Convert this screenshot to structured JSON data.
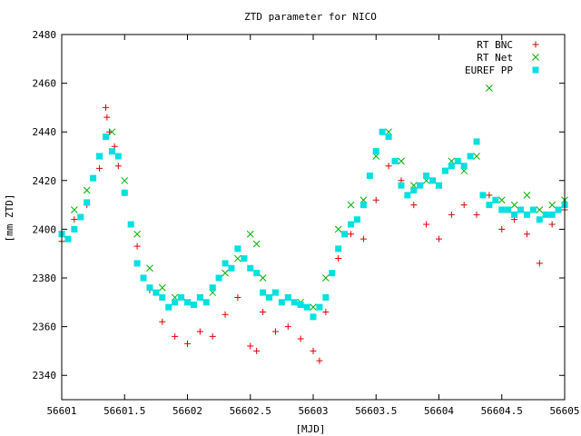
{
  "chart_data": {
    "type": "scatter",
    "title": "ZTD parameter for NICO",
    "xlabel": "[MJD]",
    "ylabel": "[mm ZTD]",
    "xlim": [
      56601,
      56605
    ],
    "ylim": [
      2330,
      2480
    ],
    "x_ticks": [
      56601,
      56601.5,
      56602,
      56602.5,
      56603,
      56603.5,
      56604,
      56604.5,
      56605
    ],
    "x_tick_labels": [
      "56601",
      "56601.5",
      "56602",
      "56602.5",
      "56603",
      "56603.5",
      "56604",
      "56604.5",
      "56605"
    ],
    "y_ticks": [
      2340,
      2360,
      2380,
      2400,
      2420,
      2440,
      2460,
      2480
    ],
    "y_tick_labels": [
      "2340",
      "2360",
      "2380",
      "2400",
      "2420",
      "2440",
      "2460",
      "2480"
    ],
    "grid": false,
    "legend_position": "top-right",
    "series": [
      {
        "name": "RT BNC",
        "marker": "plus",
        "color": "#e00000",
        "x": [
          56601.0,
          56601.1,
          56601.2,
          56601.3,
          56601.35,
          56601.36,
          56601.38,
          56601.42,
          56601.45,
          56601.5,
          56601.6,
          56601.7,
          56601.8,
          56601.9,
          56602.0,
          56602.1,
          56602.2,
          56602.3,
          56602.4,
          56602.5,
          56602.55,
          56602.6,
          56602.7,
          56602.8,
          56602.9,
          56603.0,
          56603.05,
          56603.1,
          56603.2,
          56603.3,
          56603.4,
          56603.5,
          56603.6,
          56603.7,
          56603.8,
          56603.9,
          56604.0,
          56604.1,
          56604.2,
          56604.3,
          56604.4,
          56604.5,
          56604.6,
          56604.7,
          56604.8,
          56604.9,
          56605.0
        ],
        "y": [
          2395,
          2404,
          2410,
          2425,
          2450,
          2446,
          2440,
          2434,
          2426,
          2415,
          2393,
          2375,
          2362,
          2356,
          2353,
          2358,
          2356,
          2365,
          2372,
          2352,
          2350,
          2366,
          2358,
          2360,
          2355,
          2350,
          2346,
          2366,
          2388,
          2398,
          2396,
          2412,
          2426,
          2420,
          2410,
          2402,
          2396,
          2406,
          2410,
          2406,
          2414,
          2400,
          2404,
          2398,
          2386,
          2402,
          2408
        ]
      },
      {
        "name": "RT Net",
        "marker": "cross",
        "color": "#00b000",
        "x": [
          56601.0,
          56601.1,
          56601.2,
          56601.3,
          56601.4,
          56601.5,
          56601.6,
          56601.7,
          56601.8,
          56601.9,
          56602.0,
          56602.1,
          56602.2,
          56602.3,
          56602.4,
          56602.5,
          56602.55,
          56602.6,
          56602.7,
          56602.8,
          56602.9,
          56603.0,
          56603.1,
          56603.2,
          56603.3,
          56603.4,
          56603.5,
          56603.6,
          56603.7,
          56603.8,
          56603.9,
          56604.0,
          56604.1,
          56604.2,
          56604.3,
          56604.4,
          56604.5,
          56604.6,
          56604.7,
          56604.8,
          56604.9,
          56605.0
        ],
        "y": [
          2398,
          2408,
          2416,
          2430,
          2440,
          2420,
          2398,
          2384,
          2376,
          2372,
          2370,
          2372,
          2374,
          2382,
          2388,
          2398,
          2394,
          2380,
          2374,
          2372,
          2370,
          2368,
          2380,
          2400,
          2410,
          2412,
          2430,
          2440,
          2428,
          2418,
          2420,
          2418,
          2428,
          2424,
          2430,
          2458,
          2412,
          2410,
          2414,
          2408,
          2410,
          2412
        ]
      },
      {
        "name": "EUREF PP",
        "marker": "square",
        "color": "#00e0e0",
        "x": [
          56601.0,
          56601.05,
          56601.1,
          56601.15,
          56601.2,
          56601.25,
          56601.3,
          56601.35,
          56601.4,
          56601.45,
          56601.5,
          56601.55,
          56601.6,
          56601.65,
          56601.7,
          56601.75,
          56601.8,
          56601.85,
          56601.9,
          56601.95,
          56602.0,
          56602.05,
          56602.1,
          56602.15,
          56602.2,
          56602.25,
          56602.3,
          56602.35,
          56602.4,
          56602.45,
          56602.5,
          56602.55,
          56602.6,
          56602.65,
          56602.7,
          56602.75,
          56602.8,
          56602.85,
          56602.9,
          56602.95,
          56603.0,
          56603.05,
          56603.1,
          56603.15,
          56603.2,
          56603.25,
          56603.3,
          56603.35,
          56603.4,
          56603.45,
          56603.5,
          56603.55,
          56603.6,
          56603.65,
          56603.7,
          56603.75,
          56603.8,
          56603.85,
          56603.9,
          56603.95,
          56604.0,
          56604.05,
          56604.1,
          56604.15,
          56604.2,
          56604.25,
          56604.3,
          56604.35,
          56604.4,
          56604.45,
          56604.5,
          56604.55,
          56604.6,
          56604.65,
          56604.7,
          56604.75,
          56604.8,
          56604.85,
          56604.9,
          56604.95,
          56605.0
        ],
        "y": [
          2398,
          2396,
          2400,
          2405,
          2411,
          2421,
          2430,
          2438,
          2432,
          2430,
          2415,
          2402,
          2386,
          2380,
          2376,
          2374,
          2372,
          2368,
          2370,
          2372,
          2370,
          2369,
          2372,
          2370,
          2376,
          2380,
          2386,
          2384,
          2392,
          2388,
          2384,
          2382,
          2374,
          2372,
          2374,
          2370,
          2372,
          2370,
          2369,
          2368,
          2364,
          2368,
          2372,
          2382,
          2392,
          2398,
          2402,
          2404,
          2410,
          2422,
          2432,
          2440,
          2438,
          2428,
          2418,
          2414,
          2416,
          2418,
          2422,
          2420,
          2418,
          2424,
          2426,
          2428,
          2426,
          2430,
          2436,
          2414,
          2410,
          2412,
          2408,
          2408,
          2406,
          2408,
          2406,
          2408,
          2404,
          2406,
          2406,
          2408,
          2410
        ]
      }
    ]
  }
}
